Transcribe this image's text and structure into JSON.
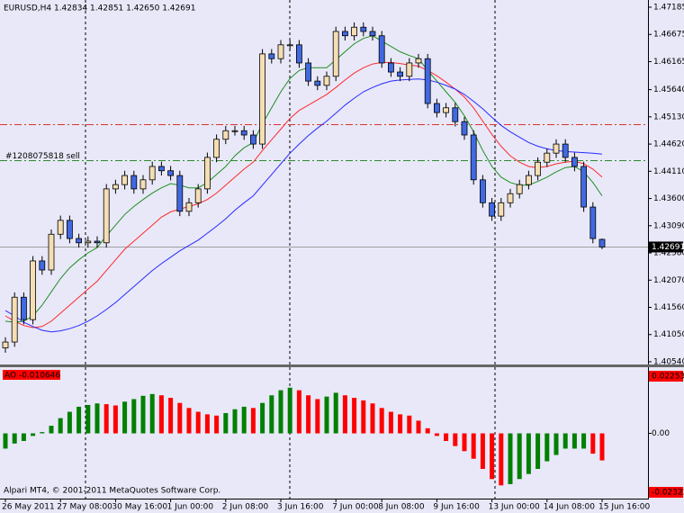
{
  "chart_data": [
    {
      "type": "candlestick",
      "title": "EURUSD,H4  1.42834 1.42851 1.42650 1.42691",
      "categories": [
        "26 May 2011",
        null,
        null,
        null,
        null,
        null,
        "27 May 08:00",
        null,
        null,
        null,
        null,
        null,
        "30 May 16:00",
        null,
        null,
        null,
        null,
        null,
        "1 Jun 00:00",
        null,
        null,
        null,
        null,
        null,
        "2 Jun 08:00",
        null,
        null,
        null,
        null,
        null,
        "3 Jun 16:00",
        null,
        null,
        null,
        null,
        null,
        "7 Jun 00:00",
        null,
        null,
        null,
        null,
        "8 Jun 08:00",
        null,
        null,
        null,
        null,
        null,
        "9 Jun 16:00",
        null,
        null,
        null,
        null,
        null,
        "13 Jun 00:00",
        null,
        null,
        null,
        null,
        null,
        "14 Jun 08:00",
        null,
        null,
        null,
        null,
        null,
        "15 Jun 16:00"
      ],
      "open": [
        1.408,
        1.4091,
        1.4175,
        1.4133,
        1.4243,
        1.4226,
        1.4293,
        1.4319,
        1.4285,
        1.4277,
        1.428,
        1.4277,
        1.4378,
        1.4386,
        1.4403,
        1.4378,
        1.4395,
        1.442,
        1.4412,
        1.4403,
        1.4336,
        1.4352,
        1.4378,
        1.4437,
        1.4471,
        1.4487,
        1.4487,
        1.4479,
        1.4462,
        1.4631,
        1.4622,
        1.4648,
        1.4648,
        1.4614,
        1.458,
        1.4572,
        1.4589,
        1.4673,
        1.4665,
        1.4681,
        1.4673,
        1.4665,
        1.4614,
        1.4597,
        1.4589,
        1.4614,
        1.4622,
        1.4538,
        1.4521,
        1.453,
        1.4504,
        1.4479,
        1.4395,
        1.4352,
        1.4327,
        1.4352,
        1.4369,
        1.4386,
        1.4403,
        1.4428,
        1.4445,
        1.4462,
        1.4437,
        1.442,
        1.4344,
        1.42834
      ],
      "high": [
        1.41,
        1.4184,
        1.4184,
        1.4252,
        1.4252,
        1.4302,
        1.4328,
        1.4328,
        1.4294,
        1.4289,
        1.4289,
        1.4387,
        1.4395,
        1.4412,
        1.4412,
        1.4404,
        1.4429,
        1.4429,
        1.4421,
        1.4412,
        1.4361,
        1.4387,
        1.4446,
        1.448,
        1.4496,
        1.4496,
        1.4496,
        1.4488,
        1.464,
        1.464,
        1.4657,
        1.4657,
        1.4657,
        1.4623,
        1.4589,
        1.4598,
        1.4682,
        1.4682,
        1.469,
        1.469,
        1.4682,
        1.4674,
        1.4623,
        1.4606,
        1.4623,
        1.4631,
        1.4631,
        1.4547,
        1.4539,
        1.4539,
        1.4513,
        1.4488,
        1.4404,
        1.4361,
        1.4361,
        1.4378,
        1.4395,
        1.4412,
        1.4437,
        1.4454,
        1.4471,
        1.4471,
        1.4446,
        1.4429,
        1.4353,
        1.42851
      ],
      "low": [
        1.4071,
        1.4082,
        1.4124,
        1.4124,
        1.4217,
        1.4217,
        1.4284,
        1.4276,
        1.4268,
        1.4268,
        1.4268,
        1.4268,
        1.4369,
        1.4377,
        1.4369,
        1.4369,
        1.4386,
        1.4403,
        1.4394,
        1.4327,
        1.4327,
        1.4343,
        1.4369,
        1.4428,
        1.4462,
        1.4478,
        1.447,
        1.4453,
        1.4453,
        1.4613,
        1.4613,
        1.4639,
        1.4605,
        1.4571,
        1.4563,
        1.4563,
        1.458,
        1.4656,
        1.4656,
        1.4664,
        1.4656,
        1.4605,
        1.4588,
        1.458,
        1.458,
        1.4605,
        1.4529,
        1.4512,
        1.4512,
        1.4495,
        1.447,
        1.4386,
        1.4343,
        1.4318,
        1.4318,
        1.4343,
        1.436,
        1.4377,
        1.4394,
        1.4419,
        1.4436,
        1.4428,
        1.4411,
        1.4335,
        1.4276,
        1.4265
      ],
      "close": [
        1.4091,
        1.4175,
        1.4133,
        1.4243,
        1.4226,
        1.4293,
        1.4319,
        1.4285,
        1.4277,
        1.428,
        1.4277,
        1.4378,
        1.4386,
        1.4403,
        1.4378,
        1.4395,
        1.442,
        1.4412,
        1.4403,
        1.4336,
        1.4352,
        1.4378,
        1.4437,
        1.4471,
        1.4487,
        1.4487,
        1.4479,
        1.4462,
        1.4631,
        1.4622,
        1.4648,
        1.4648,
        1.4614,
        1.458,
        1.4572,
        1.4589,
        1.4673,
        1.4665,
        1.4681,
        1.4673,
        1.4665,
        1.4614,
        1.4597,
        1.4589,
        1.4614,
        1.4622,
        1.4538,
        1.4521,
        1.453,
        1.4504,
        1.4479,
        1.4395,
        1.4352,
        1.4327,
        1.4352,
        1.4369,
        1.4386,
        1.4403,
        1.4428,
        1.4445,
        1.4462,
        1.4437,
        1.442,
        1.4344,
        1.4285,
        1.42691
      ],
      "up_color": "#f5deb3",
      "down_color": "#4169e1",
      "series": [
        {
          "color": "#1f8f1f",
          "values": [
            1.413,
            1.4128,
            1.413,
            1.414,
            1.416,
            1.4185,
            1.421,
            1.423,
            1.4245,
            1.4258,
            1.4268,
            1.429,
            1.431,
            1.433,
            1.4345,
            1.4358,
            1.437,
            1.438,
            1.4388,
            1.4385,
            1.438,
            1.438,
            1.439,
            1.4405,
            1.442,
            1.444,
            1.4455,
            1.4465,
            1.45,
            1.453,
            1.456,
            1.4585,
            1.46,
            1.4605,
            1.4605,
            1.4605,
            1.462,
            1.4635,
            1.465,
            1.466,
            1.4665,
            1.4655,
            1.4645,
            1.4635,
            1.4628,
            1.4622,
            1.46,
            1.458,
            1.456,
            1.454,
            1.4515,
            1.4485,
            1.445,
            1.442,
            1.44,
            1.439,
            1.4385,
            1.4385,
            1.4392,
            1.44,
            1.441,
            1.4418,
            1.442,
            1.441,
            1.439,
            1.4365
          ]
        },
        {
          "color": "#ff2a2a",
          "values": [
            1.414,
            1.413,
            1.4122,
            1.4118,
            1.412,
            1.413,
            1.4145,
            1.416,
            1.4175,
            1.419,
            1.4205,
            1.4225,
            1.4245,
            1.4265,
            1.428,
            1.4295,
            1.431,
            1.4325,
            1.4335,
            1.434,
            1.4345,
            1.435,
            1.4358,
            1.437,
            1.4385,
            1.44,
            1.4415,
            1.4428,
            1.445,
            1.447,
            1.449,
            1.451,
            1.4525,
            1.4535,
            1.4545,
            1.4555,
            1.4568,
            1.4582,
            1.4595,
            1.4605,
            1.4612,
            1.4615,
            1.4615,
            1.4613,
            1.461,
            1.4608,
            1.46,
            1.459,
            1.4578,
            1.4565,
            1.455,
            1.453,
            1.4505,
            1.448,
            1.4458,
            1.444,
            1.4428,
            1.442,
            1.4418,
            1.442,
            1.4425,
            1.4428,
            1.443,
            1.4425,
            1.4415,
            1.44
          ]
        },
        {
          "color": "#2a2aff",
          "values": [
            1.415,
            1.414,
            1.4128,
            1.412,
            1.4113,
            1.411,
            1.4112,
            1.4116,
            1.4122,
            1.413,
            1.414,
            1.4152,
            1.4165,
            1.418,
            1.4195,
            1.421,
            1.4225,
            1.4238,
            1.425,
            1.4262,
            1.4272,
            1.4282,
            1.4295,
            1.4308,
            1.4322,
            1.4338,
            1.4352,
            1.4365,
            1.4385,
            1.4405,
            1.4425,
            1.4445,
            1.4462,
            1.4478,
            1.4492,
            1.4505,
            1.452,
            1.4535,
            1.4548,
            1.456,
            1.4568,
            1.4575,
            1.458,
            1.4582,
            1.4583,
            1.4584,
            1.4582,
            1.4578,
            1.4572,
            1.4565,
            1.4555,
            1.4542,
            1.4528,
            1.4512,
            1.4497,
            1.4485,
            1.4475,
            1.4465,
            1.4458,
            1.4453,
            1.445,
            1.4448,
            1.4447,
            1.4446,
            1.4445,
            1.4443
          ]
        }
      ],
      "levels": [
        {
          "value": 1.4499,
          "color": "#e03030"
        },
        {
          "value": 1.4432,
          "color": "#2a8a2a",
          "label": "#1208075818 sell"
        },
        {
          "value": 1.42691,
          "color": "#a0a0a0"
        }
      ],
      "last_price": 1.42691,
      "ylim": [
        1.40489,
        1.4732
      ],
      "yticks": [
        1.47185,
        1.46675,
        1.46165,
        {
          "value": 1.4564,
          "label": "1.45640"
        },
        {
          "value": 1.4513,
          "label": "1.45130"
        },
        {
          "value": 1.4462,
          "label": "1.44620"
        },
        {
          "value": 1.4411,
          "label": "1.44110"
        },
        {
          "value": 1.436,
          "label": "1.43600"
        },
        {
          "value": 1.4309,
          "label": "1.43090"
        },
        {
          "value": 1.4258,
          "label": "1.42580"
        },
        {
          "value": 1.4207,
          "label": "1.42070"
        },
        {
          "value": 1.4156,
          "label": "1.41560"
        },
        {
          "value": 1.4105,
          "label": "1.41050"
        },
        {
          "value": 1.4054,
          "label": "1.40540"
        }
      ],
      "grid": false
    },
    {
      "type": "bar",
      "title": "AO -0.010646",
      "note": "Alpari MT4, © 2001-2011 MetaQuotes Software Corp.",
      "values": [
        -0.006,
        -0.004,
        -0.003,
        -0.001,
        0.0005,
        0.003,
        0.006,
        0.0085,
        0.0105,
        0.0112,
        0.0118,
        0.0115,
        0.011,
        0.0125,
        0.0135,
        0.0148,
        0.0155,
        0.015,
        0.014,
        0.012,
        0.01,
        0.0085,
        0.0075,
        0.007,
        0.008,
        0.0095,
        0.0105,
        0.01,
        0.012,
        0.015,
        0.017,
        0.018,
        0.017,
        0.015,
        0.0135,
        0.0145,
        0.016,
        0.015,
        0.014,
        0.013,
        0.0118,
        0.01,
        0.0085,
        0.0075,
        0.007,
        0.005,
        0.002,
        -0.001,
        -0.003,
        -0.005,
        -0.007,
        -0.01,
        -0.014,
        -0.018,
        -0.0205,
        -0.02,
        -0.018,
        -0.016,
        -0.014,
        -0.011,
        -0.0085,
        -0.006,
        -0.006,
        -0.006,
        -0.008,
        -0.010646
      ],
      "up_color": "#008000",
      "down_color": "#ff0000",
      "ylim": [
        -0.02535,
        0.02572
      ],
      "yticks": [
        0.02253,
        {
          "value": 0,
          "label": "0.00"
        },
        -0.02322
      ]
    }
  ]
}
